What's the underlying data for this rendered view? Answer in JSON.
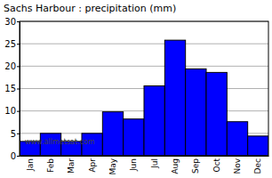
{
  "chart_data": {
    "type": "bar",
    "title": "Sachs Harbour : precipitation (mm)",
    "categories": [
      "Jan",
      "Feb",
      "Mar",
      "Apr",
      "May",
      "Jun",
      "Jul",
      "Aug",
      "Sep",
      "Oct",
      "Nov",
      "Dec"
    ],
    "values": [
      3.2,
      5,
      3.2,
      5,
      9.8,
      8.2,
      15.6,
      25.8,
      19.4,
      18.6,
      7.6,
      4.4
    ],
    "color": "#0000ff",
    "ylim": [
      0,
      30
    ],
    "yticks": [
      0,
      5,
      10,
      15,
      20,
      25,
      30
    ],
    "grid": true,
    "annotations": [
      "www.allmetsat.com"
    ]
  }
}
